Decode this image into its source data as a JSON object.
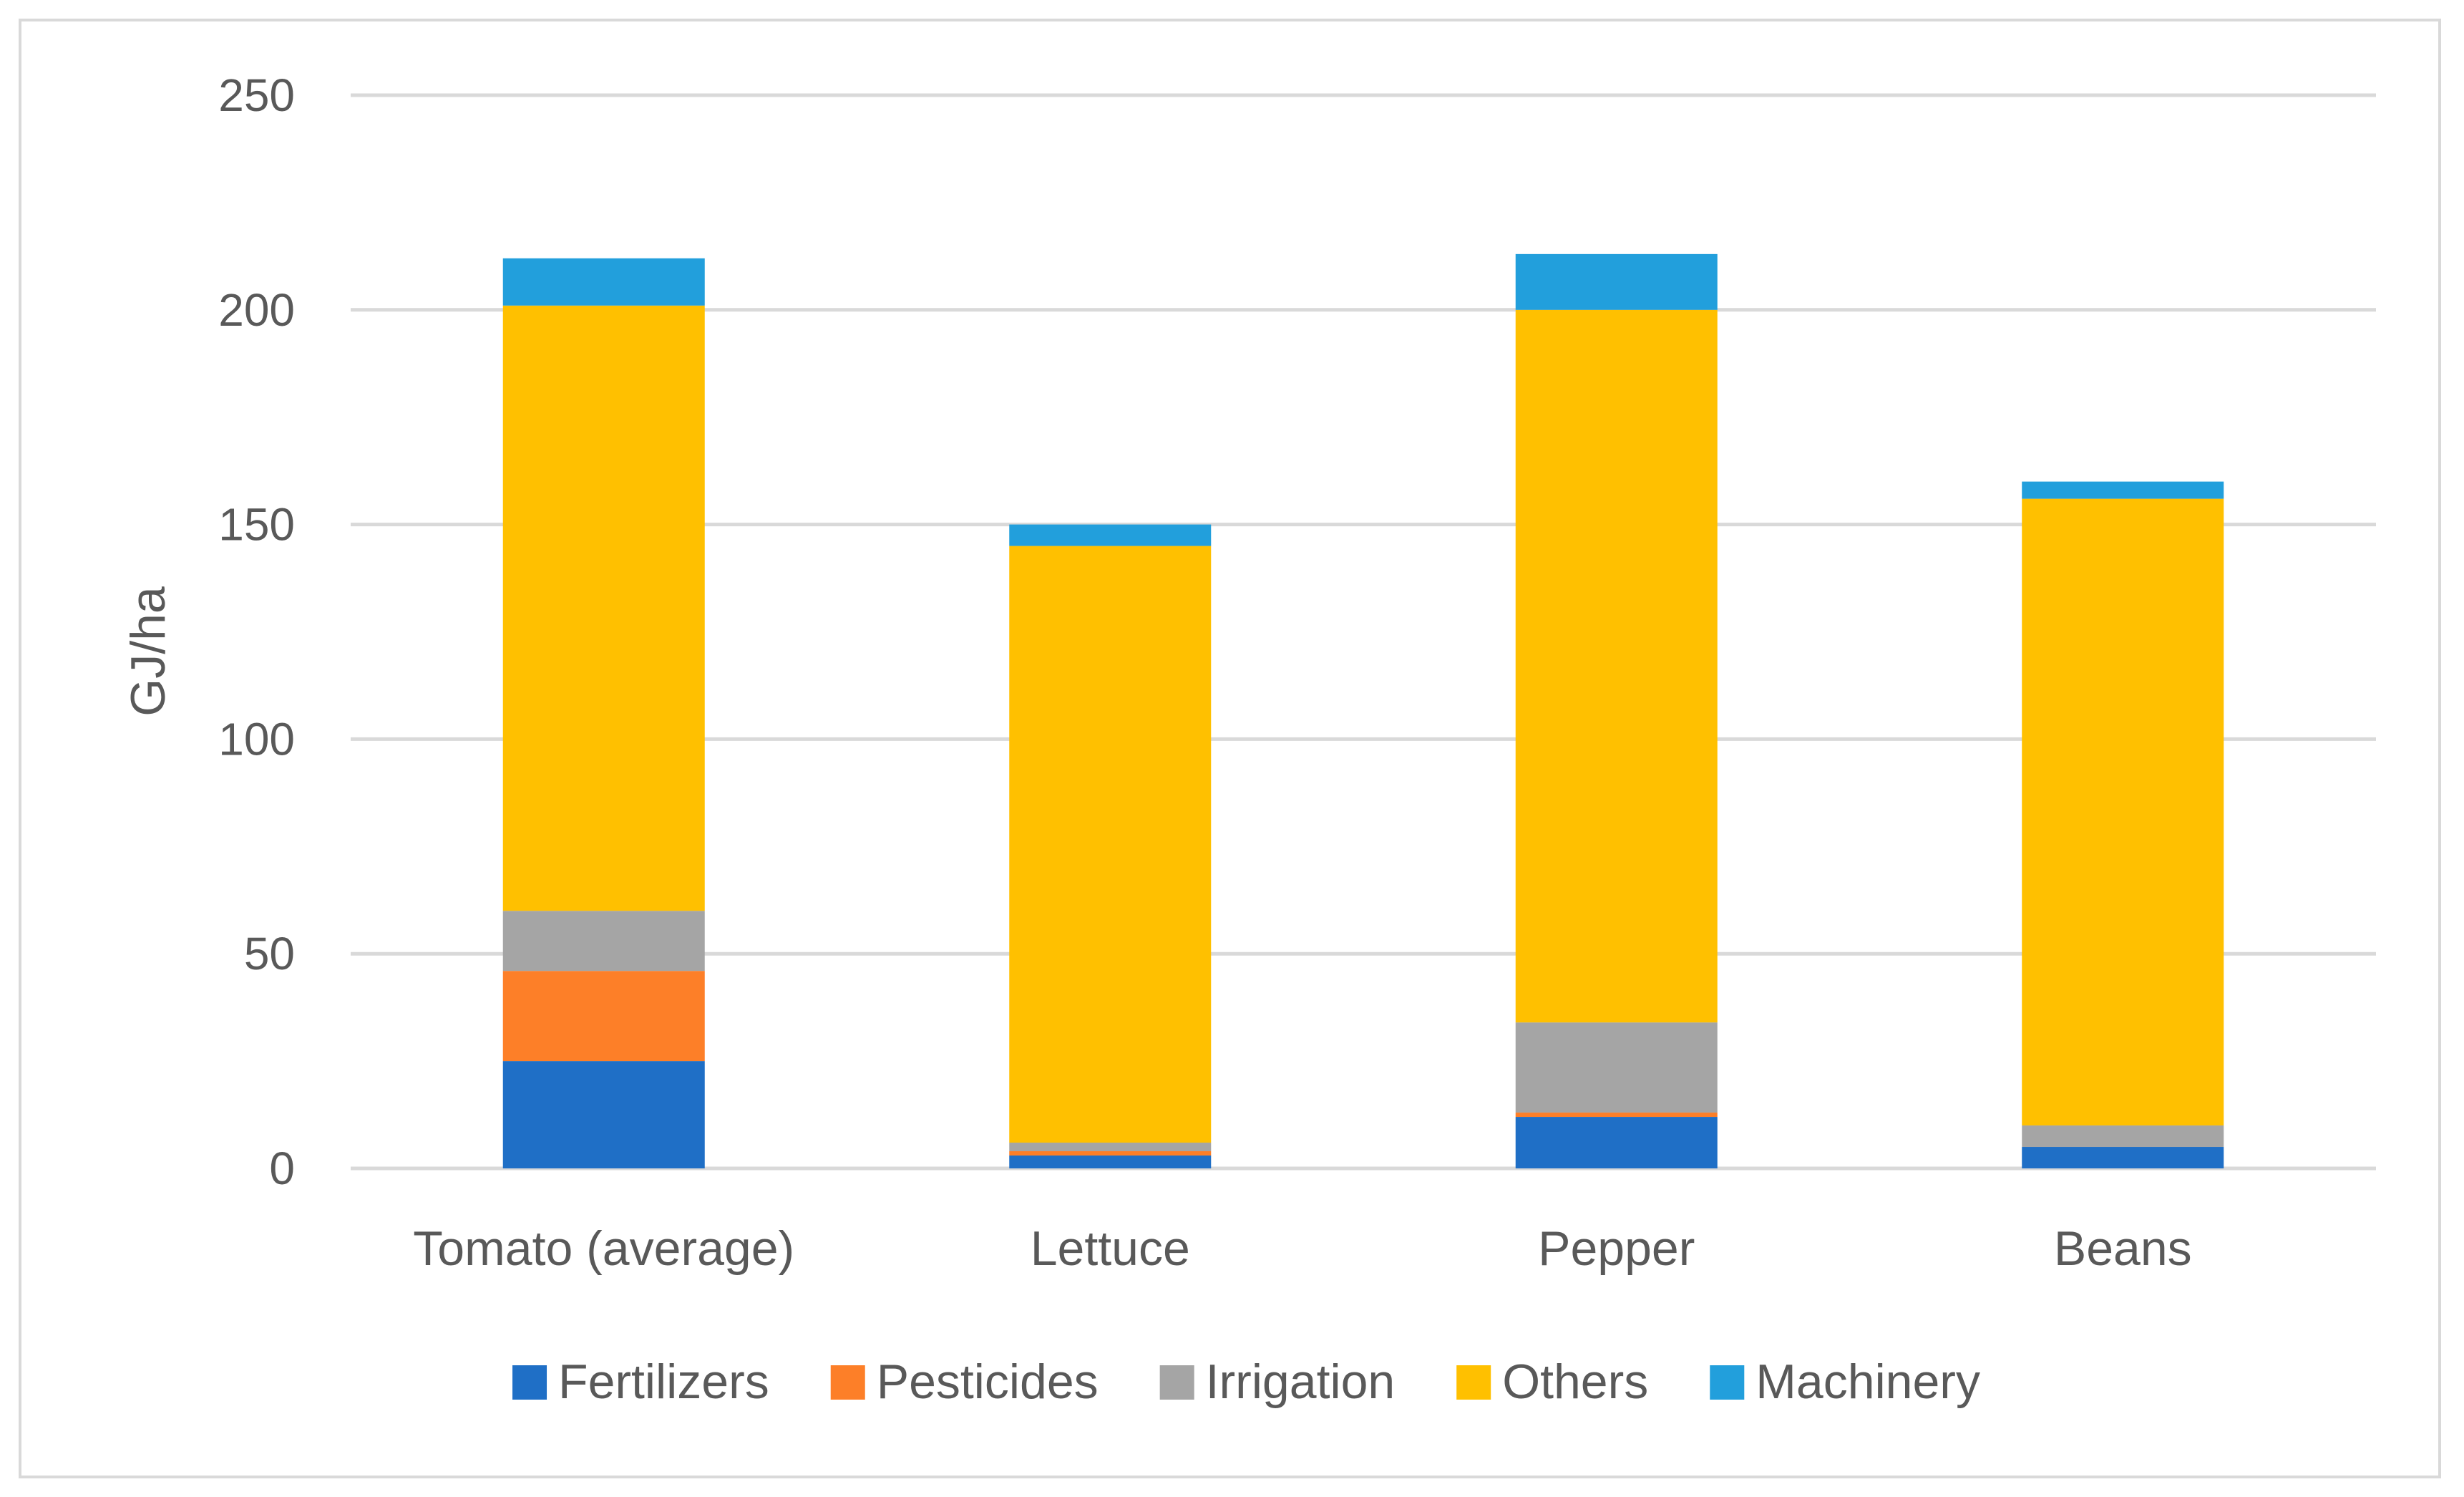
{
  "chart_data": {
    "type": "bar",
    "stacked": true,
    "ylabel": "GJ/ha",
    "ylim": [
      0,
      250
    ],
    "yticks": [
      0,
      50,
      100,
      150,
      200,
      250
    ],
    "grid": true,
    "legend_position": "bottom",
    "categories": [
      "Tomato (average)",
      "Lettuce",
      "Pepper",
      "Beans"
    ],
    "series": [
      {
        "name": "Fertilizers",
        "color": "#1f6fc6",
        "values": [
          25,
          3,
          12,
          5
        ]
      },
      {
        "name": "Pesticides",
        "color": "#fd7f28",
        "values": [
          21,
          1,
          1,
          0
        ]
      },
      {
        "name": "Irrigation",
        "color": "#a5a5a5",
        "values": [
          14,
          2,
          21,
          5
        ]
      },
      {
        "name": "Others",
        "color": "#ffc000",
        "values": [
          141,
          139,
          166,
          146
        ]
      },
      {
        "name": "Machinery",
        "color": "#229fdc",
        "values": [
          11,
          5,
          13,
          4
        ]
      }
    ]
  }
}
